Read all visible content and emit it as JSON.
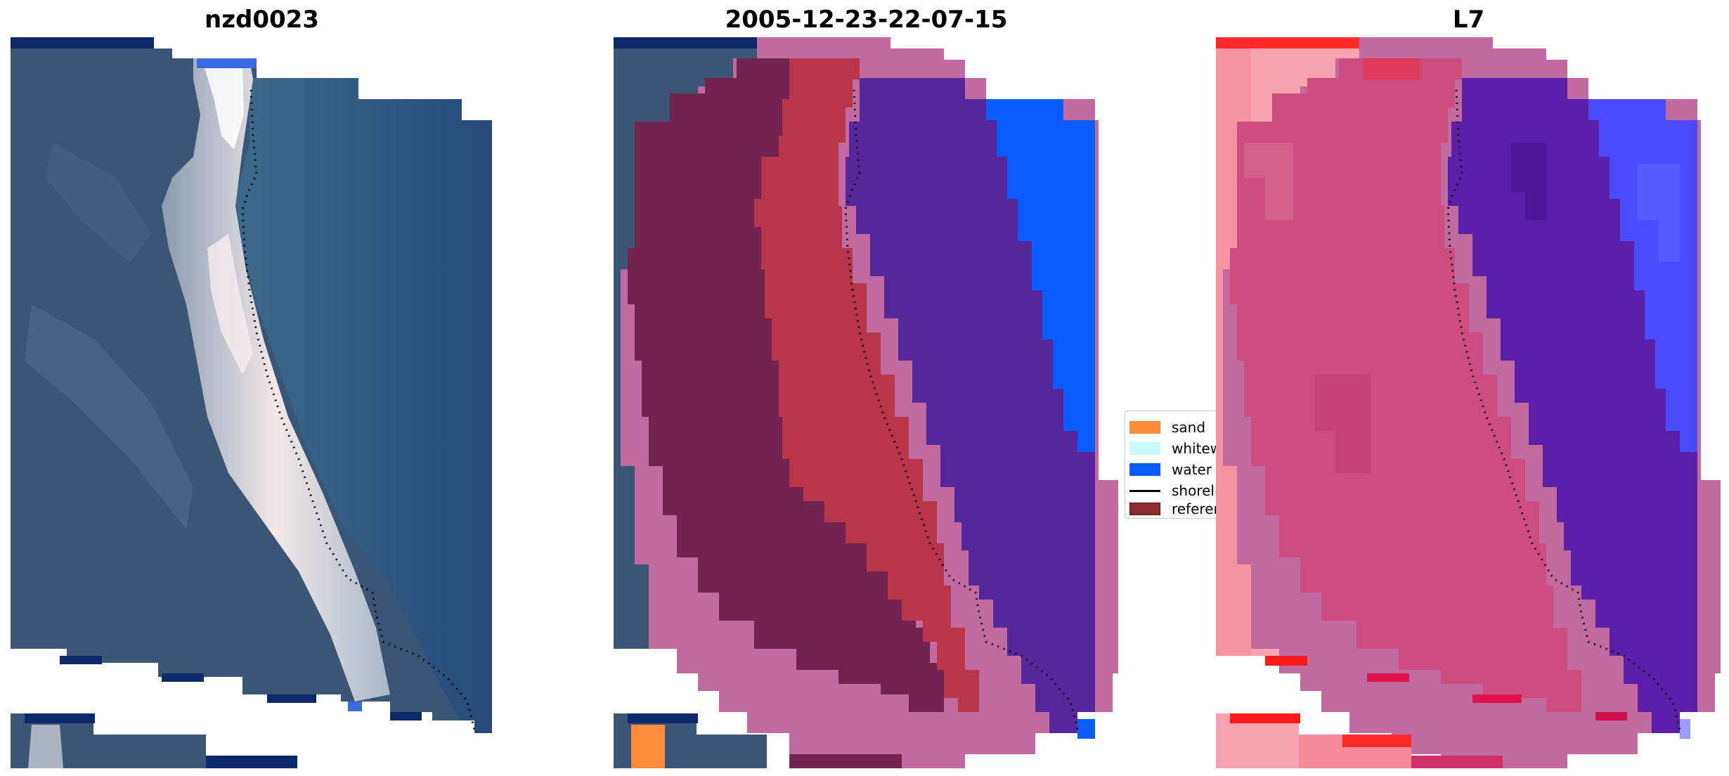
{
  "panels": [
    {
      "title": "nzd0023",
      "content": "satellite RGB image of coastline with reference shoreline"
    },
    {
      "title": "2005-12-23-22-07-15",
      "content": "classified image overlay: sand, whitewater, water, reference shoreline"
    },
    {
      "title": "L7",
      "content": "probability / confidence overlay with reference shoreline"
    }
  ],
  "legend": {
    "items": [
      {
        "label": "sand",
        "color": "#ff8c3a",
        "kind": "patch"
      },
      {
        "label": "whitewater",
        "color": "#c8fcff",
        "kind": "patch"
      },
      {
        "label": "water",
        "color": "#0b5cff",
        "kind": "patch"
      },
      {
        "label": "shoreline",
        "color": "#000000",
        "kind": "line"
      },
      {
        "label": "reference shoreline",
        "color": "#8b2d2d",
        "kind": "patch"
      }
    ]
  },
  "colors": {
    "sea": "#2a4a7a",
    "land": "#3a5478",
    "beach": "#e8dcd8",
    "overlay_land": "#7a2254",
    "overlay_sand": "#b8354a",
    "overlay_water": "#55279a",
    "overlay_ocean": "#0b5cff",
    "overlay_pink": "#c06aa0",
    "prob_pink": "#cc4d7e",
    "prob_light": "#f3a0b0",
    "prob_red": "#ff1a1a",
    "prob_purple": "#5b1fa8",
    "prob_blue": "#4a4aff"
  }
}
